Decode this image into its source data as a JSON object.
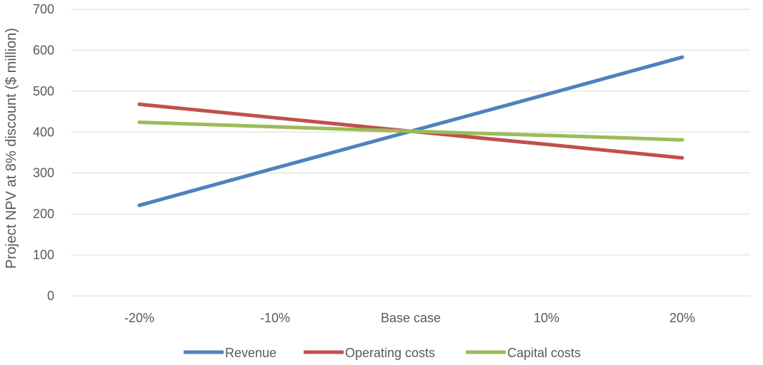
{
  "chart_data": {
    "type": "line",
    "title": "",
    "xlabel": "",
    "ylabel": "Project NPV at 8% discount ($ million)",
    "categories": [
      "-20%",
      "-10%",
      "Base case",
      "10%",
      "20%"
    ],
    "ylim": [
      0,
      700
    ],
    "yticks": [
      "0",
      "100",
      "200",
      "300",
      "400",
      "500",
      "600",
      "700"
    ],
    "grid": true,
    "legend_position": "bottom",
    "series": [
      {
        "name": "Revenue",
        "color": "#4F81BD",
        "values": [
          221,
          312,
          402,
          492,
          583
        ]
      },
      {
        "name": "Operating costs",
        "color": "#C0504D",
        "values": [
          468,
          435,
          402,
          370,
          337
        ]
      },
      {
        "name": "Capital costs",
        "color": "#9BBB59",
        "values": [
          424,
          413,
          402,
          392,
          381
        ]
      }
    ]
  }
}
